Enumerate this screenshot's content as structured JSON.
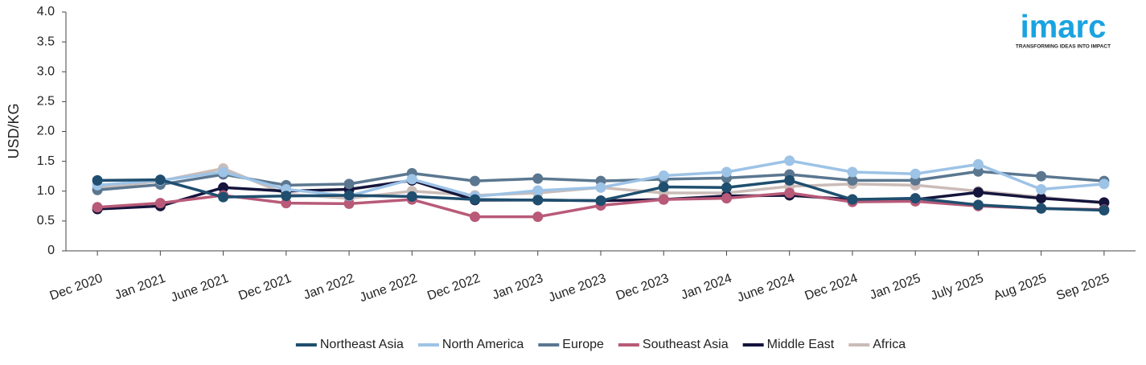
{
  "chart_data": {
    "type": "line",
    "y_label": "USD/KG",
    "categories": [
      "Dec 2020",
      "Jan 2021",
      "June 2021",
      "Dec 2021",
      "Jan 2022",
      "June 2022",
      "Dec 2022",
      "Jan 2023",
      "June 2023",
      "Dec 2023",
      "Jan 2024",
      "June 2024",
      "Dec 2024",
      "Jan 2025",
      "July 2025",
      "Aug 2025",
      "Sep 2025"
    ],
    "series": [
      {
        "name": "Northeast Asia",
        "color": "#1f4e6e",
        "values": [
          1.18,
          1.19,
          0.9,
          0.92,
          0.93,
          0.91,
          0.86,
          0.85,
          0.84,
          1.07,
          1.06,
          1.18,
          0.86,
          0.88,
          0.77,
          0.71,
          0.68
        ]
      },
      {
        "name": "North America",
        "color": "#9dc3e6",
        "values": [
          1.1,
          1.18,
          1.32,
          1.03,
          0.92,
          1.2,
          0.91,
          1.01,
          1.06,
          1.26,
          1.32,
          1.51,
          1.32,
          1.29,
          1.45,
          1.03,
          1.12
        ]
      },
      {
        "name": "Europe",
        "color": "#5b7790",
        "values": [
          1.02,
          1.11,
          1.28,
          1.1,
          1.12,
          1.3,
          1.17,
          1.21,
          1.17,
          1.2,
          1.22,
          1.28,
          1.18,
          1.18,
          1.33,
          1.25,
          1.17
        ]
      },
      {
        "name": "Southeast Asia",
        "color": "#b85a78",
        "values": [
          0.73,
          0.8,
          0.93,
          0.8,
          0.79,
          0.86,
          0.57,
          0.57,
          0.76,
          0.86,
          0.88,
          0.97,
          0.82,
          0.83,
          0.75,
          0.71,
          0.69
        ]
      },
      {
        "name": "Middle East",
        "color": "#14143c",
        "values": [
          0.7,
          0.75,
          1.06,
          1.0,
          1.03,
          1.18,
          0.85,
          0.85,
          0.84,
          0.86,
          0.92,
          0.93,
          0.86,
          0.86,
          0.98,
          0.88,
          0.81
        ]
      },
      {
        "name": "Africa",
        "color": "#cbbcb8",
        "values": [
          1.05,
          1.17,
          1.38,
          0.95,
          0.88,
          1.0,
          0.93,
          0.97,
          1.06,
          0.97,
          0.97,
          1.08,
          1.12,
          1.1,
          1.0,
          0.9,
          0.8
        ]
      }
    ],
    "ylim": [
      0,
      4
    ],
    "yticks": [
      0,
      0.5,
      {
        "value": 1,
        "label": "1.0"
      },
      1.5,
      {
        "value": 2,
        "label": "2.0"
      },
      2.5,
      {
        "value": 3,
        "label": "3.0"
      },
      3.5,
      {
        "value": 4,
        "label": "4.0"
      }
    ],
    "legend": "bottom",
    "grid": false
  },
  "logo": {
    "name": "imarc",
    "tagline": "TRANSFORMING IDEAS INTO IMPACT"
  }
}
